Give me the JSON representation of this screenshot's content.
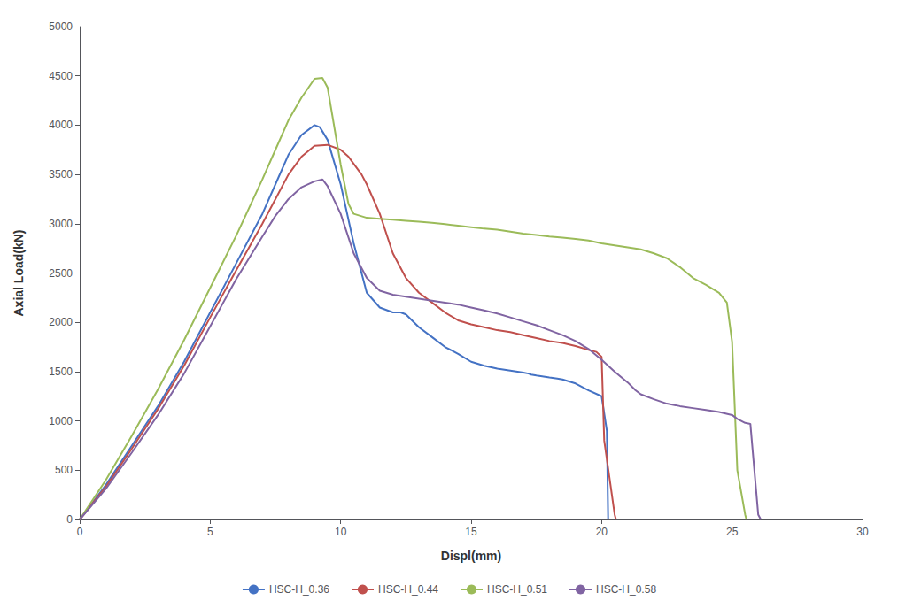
{
  "chart_data": {
    "type": "line",
    "xlabel": "Displ(mm)",
    "ylabel": "Axial Load(kN)",
    "xlim": [
      0,
      30
    ],
    "ylim": [
      0,
      5000
    ],
    "xticks": [
      0,
      5,
      10,
      15,
      20,
      25,
      30
    ],
    "yticks": [
      0,
      500,
      1000,
      1500,
      2000,
      2500,
      3000,
      3500,
      4000,
      4500,
      5000
    ],
    "grid": false,
    "legend": "bottom",
    "series": [
      {
        "name": "HSC-H_0.36",
        "color": "#4472C4",
        "x": [
          0,
          1,
          2,
          3,
          4,
          5,
          6,
          7,
          7.5,
          8,
          8.5,
          9,
          9.2,
          9.5,
          10,
          10.5,
          11,
          11.5,
          12,
          12.3,
          12.5,
          13,
          13.5,
          14,
          14.5,
          15,
          15.5,
          16,
          16.5,
          17,
          17.2,
          17.3,
          17.5,
          18,
          18.3,
          18.5,
          19,
          19.5,
          20,
          20.2,
          20.25
        ],
        "values": [
          0,
          350,
          750,
          1150,
          1600,
          2100,
          2600,
          3100,
          3400,
          3700,
          3900,
          4000,
          3980,
          3850,
          3400,
          2800,
          2300,
          2150,
          2100,
          2100,
          2080,
          1950,
          1850,
          1750,
          1680,
          1600,
          1560,
          1530,
          1510,
          1490,
          1480,
          1470,
          1460,
          1440,
          1430,
          1420,
          1380,
          1310,
          1250,
          900,
          0
        ]
      },
      {
        "name": "HSC-H_0.44",
        "color": "#C0504D",
        "x": [
          0,
          1,
          2,
          3,
          4,
          5,
          6,
          7,
          7.5,
          8,
          8.5,
          9,
          9.5,
          10,
          10.3,
          10.8,
          11,
          11.5,
          12,
          12.5,
          13,
          13.5,
          14,
          14.5,
          15,
          15.5,
          16,
          16.5,
          17,
          17.5,
          18,
          18.5,
          19,
          19.5,
          19.8,
          20,
          20.1,
          20.5,
          20.55
        ],
        "values": [
          0,
          330,
          720,
          1120,
          1560,
          2050,
          2530,
          3000,
          3250,
          3500,
          3680,
          3790,
          3800,
          3750,
          3680,
          3500,
          3400,
          3100,
          2700,
          2450,
          2300,
          2200,
          2100,
          2020,
          1980,
          1950,
          1920,
          1900,
          1870,
          1840,
          1810,
          1790,
          1760,
          1720,
          1700,
          1650,
          800,
          50,
          0
        ]
      },
      {
        "name": "HSC-H_0.51",
        "color": "#9BBB59",
        "x": [
          0,
          1,
          2,
          3,
          4,
          5,
          6,
          7,
          7.5,
          8,
          8.5,
          9,
          9.3,
          9.5,
          10,
          10.3,
          10.5,
          11,
          11.5,
          12,
          12.5,
          13,
          13.5,
          14,
          14.5,
          15,
          15.5,
          16,
          16.5,
          17,
          17.5,
          18,
          18.5,
          19,
          19.5,
          20,
          20.5,
          21,
          21.5,
          22,
          22.5,
          23,
          23.5,
          24,
          24.5,
          24.8,
          25,
          25.2,
          25.5,
          25.55
        ],
        "values": [
          0,
          400,
          850,
          1320,
          1820,
          2350,
          2880,
          3450,
          3750,
          4050,
          4280,
          4470,
          4480,
          4380,
          3600,
          3200,
          3100,
          3060,
          3050,
          3040,
          3030,
          3020,
          3010,
          2995,
          2980,
          2965,
          2950,
          2940,
          2920,
          2900,
          2885,
          2870,
          2860,
          2845,
          2830,
          2800,
          2780,
          2760,
          2740,
          2700,
          2650,
          2560,
          2450,
          2380,
          2300,
          2200,
          1800,
          500,
          50,
          0
        ]
      },
      {
        "name": "HSC-H_0.58",
        "color": "#8064A2",
        "x": [
          0,
          1,
          2,
          3,
          4,
          5,
          6,
          7,
          7.5,
          8,
          8.5,
          9,
          9.3,
          9.5,
          10,
          10.5,
          11,
          11.5,
          12,
          12.5,
          13,
          13.5,
          14,
          14.5,
          15,
          15.5,
          16,
          16.5,
          17,
          17.5,
          18,
          18.5,
          19,
          19.5,
          20,
          20.5,
          21,
          21.3,
          21.5,
          22,
          22.5,
          23,
          23.5,
          24,
          24.5,
          25,
          25.2,
          25.5,
          25.7,
          26,
          26.1
        ],
        "values": [
          0,
          310,
          680,
          1060,
          1480,
          1960,
          2440,
          2870,
          3080,
          3250,
          3370,
          3430,
          3450,
          3380,
          3100,
          2700,
          2450,
          2320,
          2280,
          2260,
          2240,
          2220,
          2200,
          2180,
          2150,
          2120,
          2090,
          2050,
          2010,
          1970,
          1920,
          1870,
          1810,
          1730,
          1620,
          1500,
          1390,
          1310,
          1270,
          1220,
          1175,
          1150,
          1130,
          1110,
          1090,
          1060,
          1020,
          980,
          970,
          50,
          0
        ]
      }
    ]
  }
}
